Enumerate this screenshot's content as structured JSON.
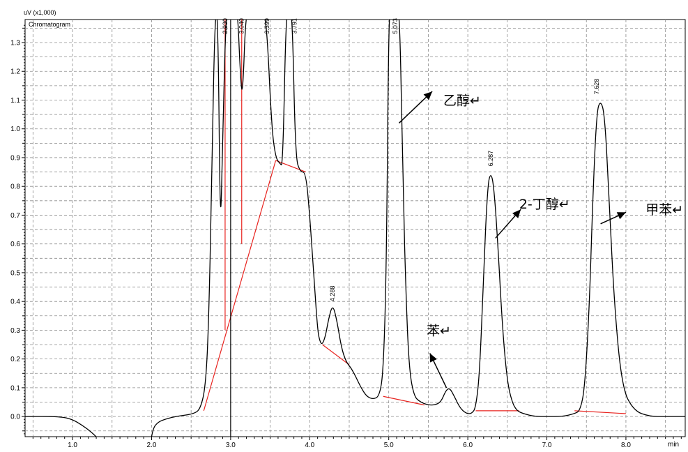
{
  "chart_data": {
    "type": "line",
    "y_unit_label": "uV (x1,000)",
    "legend_label": "Chromatogram",
    "x_unit_label": "min",
    "xlim": [
      0.4,
      8.75
    ],
    "ylim": [
      -0.07,
      1.38
    ],
    "x_ticks": [
      "1.0",
      "2.0",
      "3.0",
      "4.0",
      "5.0",
      "6.0",
      "7.0",
      "8.0"
    ],
    "y_ticks": [
      "0.0",
      "0.1",
      "0.2",
      "0.3",
      "0.4",
      "0.5",
      "0.6",
      "0.7",
      "0.8",
      "0.9",
      "1.0",
      "1.1",
      "1.2",
      "1.3"
    ],
    "grid": true,
    "series": [
      {
        "x": [
          0.4,
          0.85,
          1.0,
          1.12,
          1.22,
          1.3,
          1.36,
          1.4,
          1.98,
          2.02,
          2.08,
          2.16,
          2.3,
          2.55,
          2.62,
          2.68,
          2.72,
          2.76,
          2.8,
          2.84,
          2.87,
          2.9,
          2.94,
          2.98,
          3.02,
          3.06,
          3.09,
          3.12,
          3.15,
          3.19,
          3.24,
          3.3,
          3.38,
          3.45,
          3.52,
          3.57,
          3.62,
          3.66,
          3.7,
          3.74,
          3.78,
          3.82,
          3.88,
          3.95,
          4.0,
          4.05,
          4.1,
          4.13,
          4.16,
          4.2,
          4.24,
          4.29,
          4.34,
          4.4,
          4.46,
          4.52,
          4.58,
          4.65,
          4.72,
          4.8,
          4.88,
          4.93,
          4.97,
          5.0,
          5.03,
          5.06,
          5.1,
          5.14,
          5.18,
          5.22,
          5.26,
          5.32,
          5.4,
          5.5,
          5.58,
          5.66,
          5.72,
          5.77,
          5.83,
          5.9,
          5.98,
          6.05,
          6.1,
          6.15,
          6.2,
          6.25,
          6.29,
          6.33,
          6.38,
          6.44,
          6.5,
          6.56,
          6.62,
          6.7,
          6.85,
          7.0,
          7.2,
          7.35,
          7.42,
          7.48,
          7.54,
          7.58,
          7.63,
          7.68,
          7.73,
          7.78,
          7.85,
          7.95,
          8.1,
          8.3,
          8.5,
          8.75
        ],
        "y": [
          0.0,
          0.0,
          -0.01,
          -0.03,
          -0.05,
          -0.07,
          -0.09,
          -0.1,
          -0.1,
          -0.04,
          -0.02,
          -0.01,
          0.0,
          0.01,
          0.03,
          0.1,
          0.3,
          0.8,
          1.4,
          1.4,
          0.6,
          0.98,
          1.4,
          1.4,
          1.4,
          1.4,
          1.4,
          1.2,
          1.1,
          1.4,
          1.4,
          1.4,
          1.4,
          1.4,
          1.0,
          0.9,
          0.88,
          0.87,
          1.4,
          1.4,
          1.4,
          0.9,
          0.85,
          0.85,
          0.7,
          0.5,
          0.3,
          0.26,
          0.25,
          0.28,
          0.34,
          0.39,
          0.34,
          0.24,
          0.19,
          0.17,
          0.14,
          0.1,
          0.07,
          0.06,
          0.07,
          0.15,
          0.5,
          1.4,
          1.4,
          1.4,
          1.4,
          1.4,
          0.8,
          0.4,
          0.16,
          0.07,
          0.05,
          0.04,
          0.04,
          0.05,
          0.09,
          0.1,
          0.07,
          0.03,
          0.01,
          0.01,
          0.03,
          0.15,
          0.5,
          0.8,
          0.85,
          0.8,
          0.6,
          0.3,
          0.12,
          0.05,
          0.02,
          0.01,
          0.0,
          0.0,
          0.0,
          0.01,
          0.02,
          0.1,
          0.4,
          0.75,
          1.06,
          1.1,
          1.05,
          0.8,
          0.4,
          0.1,
          0.02,
          0.0,
          0.0,
          0.0
        ]
      }
    ],
    "peak_labels": [
      {
        "x": 2.93,
        "y": 1.33,
        "text": "2.930"
      },
      {
        "x": 3.14,
        "y": 1.33,
        "text": "3.040"
      },
      {
        "x": 3.46,
        "y": 1.33,
        "text": "3.399"
      },
      {
        "x": 3.81,
        "y": 1.33,
        "text": "3.791"
      },
      {
        "x": 4.29,
        "y": 0.4,
        "text": "4.288"
      },
      {
        "x": 5.08,
        "y": 1.33,
        "text": "5.073"
      },
      {
        "x": 6.29,
        "y": 0.87,
        "text": "6.287"
      },
      {
        "x": 7.63,
        "y": 1.12,
        "text": "7.628"
      }
    ],
    "annotations": [
      {
        "text": "乙醇↵",
        "x": 5.69,
        "y": 1.1
      },
      {
        "text": "2-丁醇↵",
        "x": 6.65,
        "y": 0.74
      },
      {
        "text": "甲苯↵",
        "x": 8.25,
        "y": 0.72
      },
      {
        "text": "苯↵",
        "x": 5.48,
        "y": 0.3
      }
    ]
  }
}
